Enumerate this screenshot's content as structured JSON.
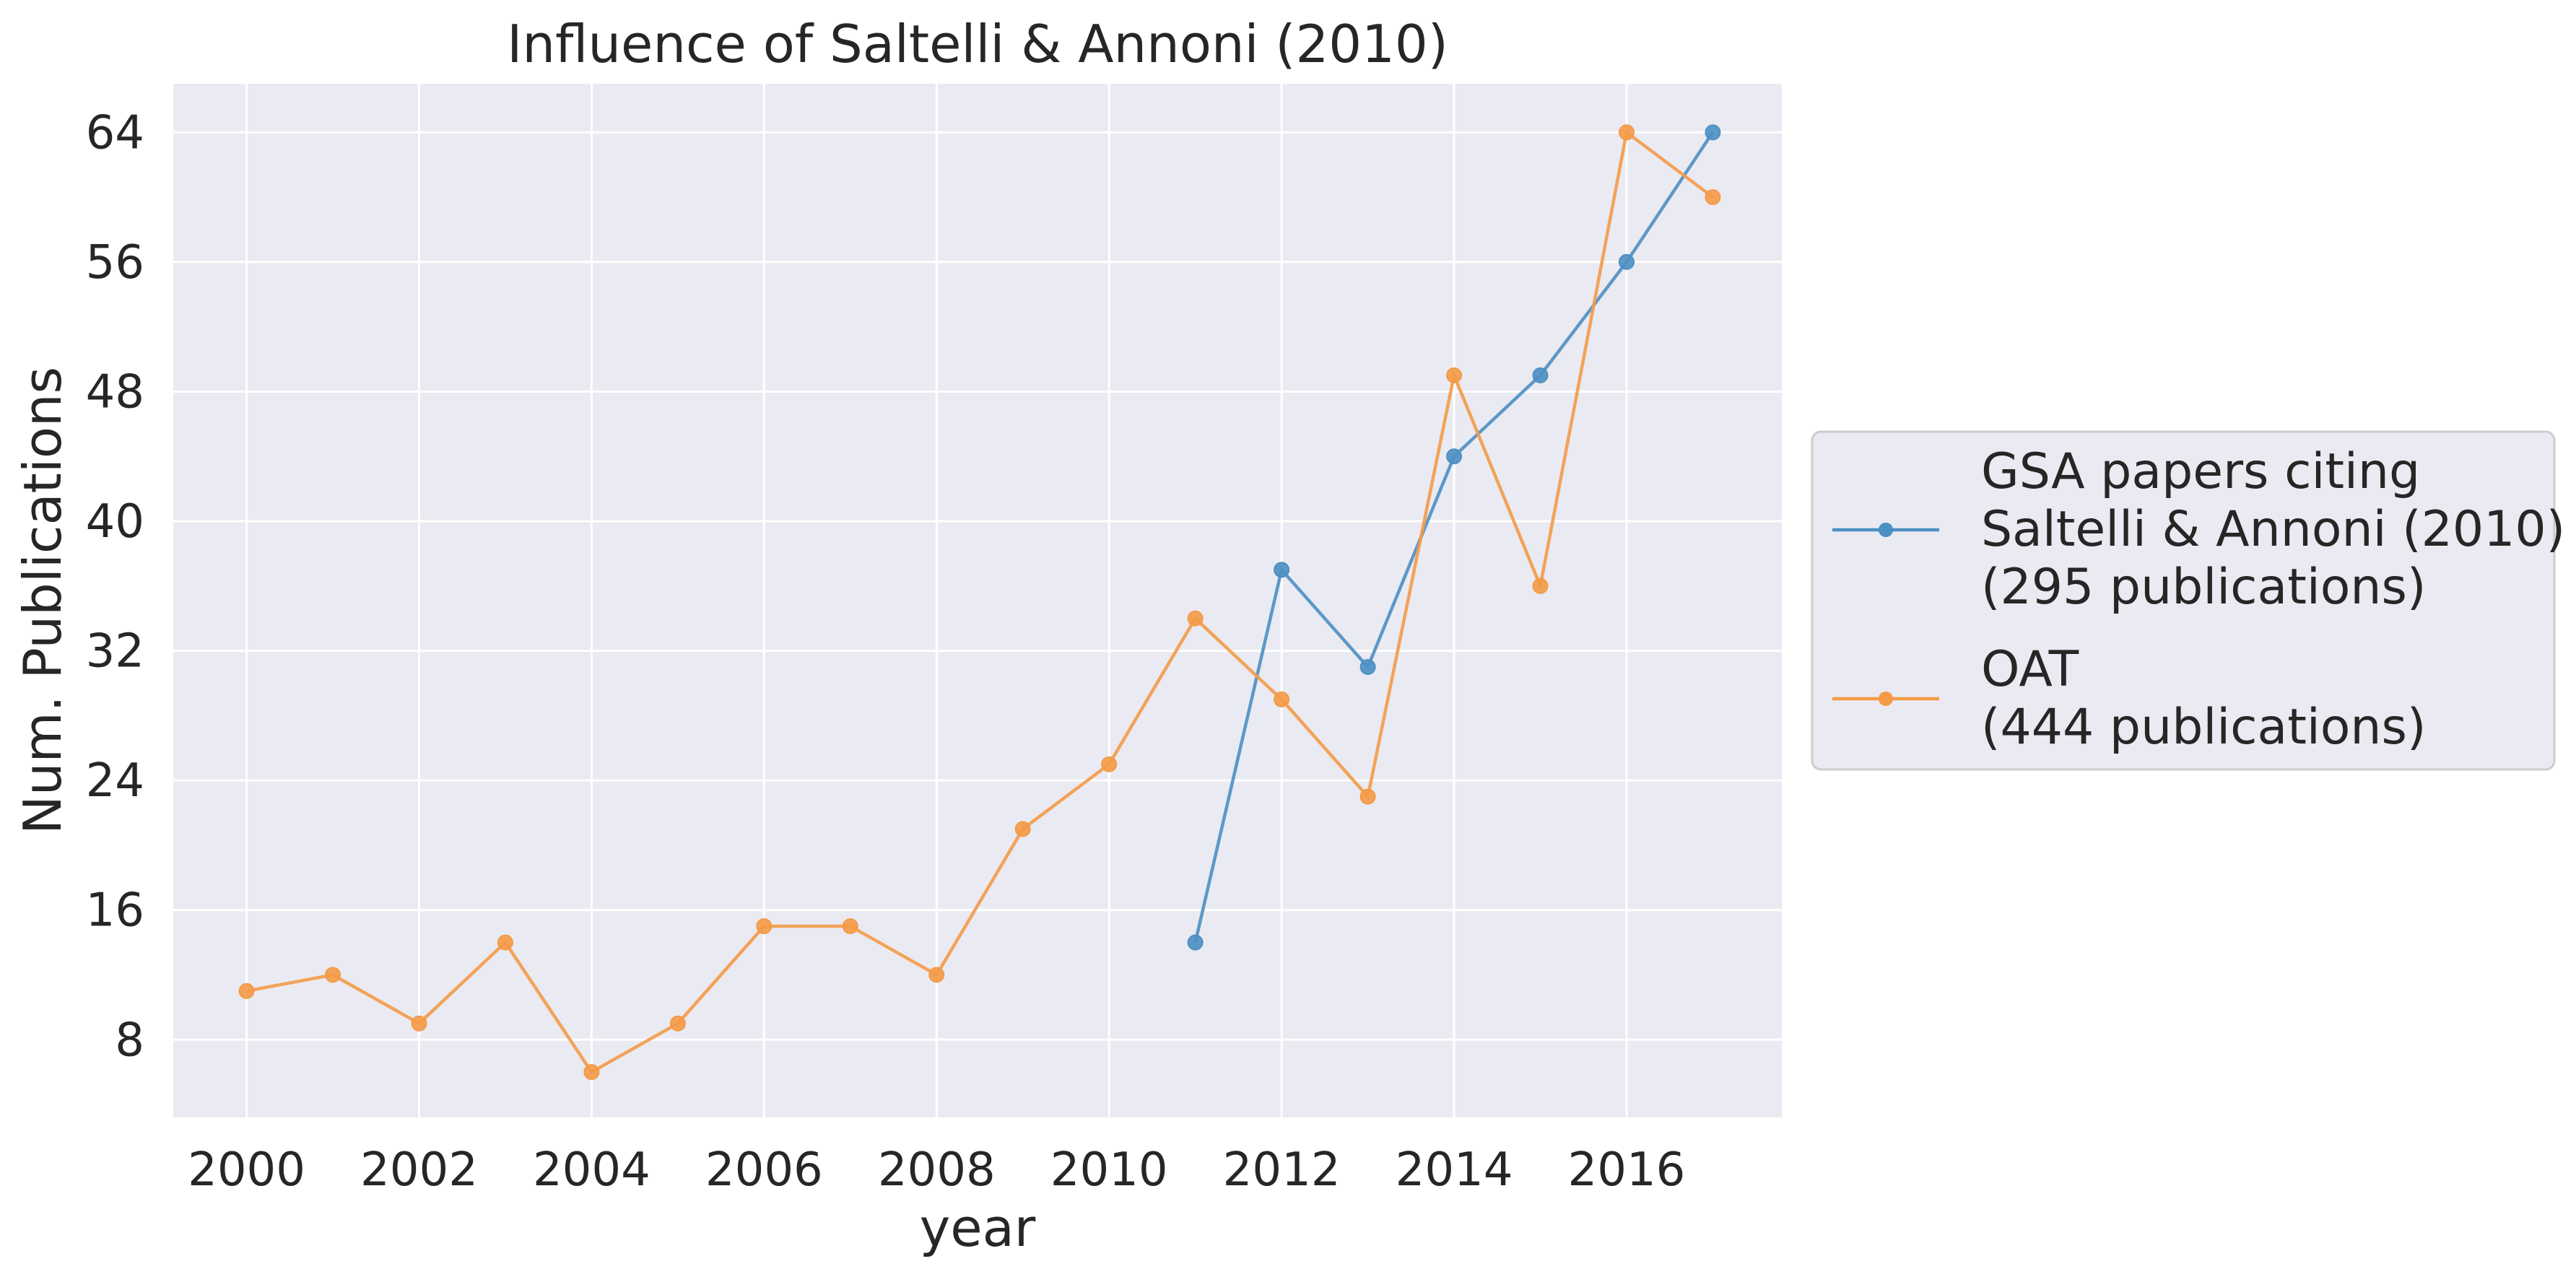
{
  "chart_data": {
    "type": "line",
    "title": "Influence of Saltelli & Annoni (2010)",
    "xlabel": "year",
    "ylabel": "Num. Publications",
    "xlim": [
      1999.15,
      2017.8
    ],
    "ylim": [
      3.2,
      67
    ],
    "xticks": [
      2000,
      2002,
      2004,
      2006,
      2008,
      2010,
      2012,
      2014,
      2016
    ],
    "yticks": [
      8,
      16,
      24,
      32,
      40,
      48,
      56,
      64
    ],
    "grid": true,
    "legend_position": "outside-right",
    "series": [
      {
        "name": "GSA papers citing\nSaltelli & Annoni (2010)\n(295 publications)",
        "color": "#4c8fc2",
        "x": [
          2011,
          2012,
          2013,
          2014,
          2015,
          2016,
          2017
        ],
        "values": [
          14,
          37,
          31,
          44,
          49,
          56,
          64
        ]
      },
      {
        "name": "OAT\n(444 publications)",
        "color": "#f49a47",
        "x": [
          2000,
          2001,
          2002,
          2003,
          2004,
          2005,
          2006,
          2007,
          2008,
          2009,
          2010,
          2011,
          2012,
          2013,
          2014,
          2015,
          2016,
          2017
        ],
        "values": [
          11,
          12,
          9,
          14,
          6,
          9,
          15,
          15,
          12,
          21,
          25,
          34,
          29,
          23,
          49,
          36,
          64,
          60
        ]
      }
    ]
  },
  "colors": {
    "plot_background": "#eaeaf2",
    "grid": "#ffffff",
    "legend_background": "#eaeaf2",
    "legend_border": "#cccccc"
  }
}
